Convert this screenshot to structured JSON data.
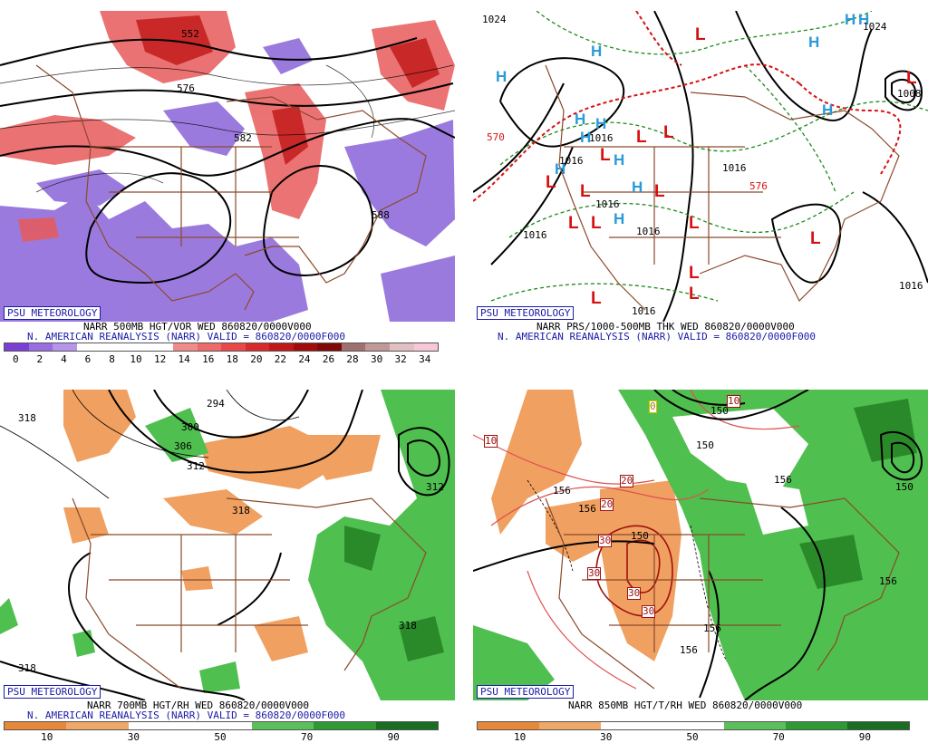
{
  "badge": "PSU METEOROLOGY",
  "panels": {
    "tl": {
      "title": "NARR 500MB HGT/VOR WED 860820/0000V000",
      "subtitle": "N. AMERICAN REANALYSIS (NARR) VALID = 860820/0000F000",
      "labels": [
        "576",
        "582",
        "588",
        "552"
      ],
      "scale_ticks": [
        "0",
        "2",
        "4",
        "6",
        "8",
        "10",
        "12",
        "14",
        "16",
        "18",
        "20",
        "22",
        "24",
        "26",
        "28",
        "30",
        "32",
        "34"
      ],
      "scale_colors": [
        "#7b3fd6",
        "#9a6ee0",
        "#b596ea",
        "#ffffff",
        "#ffffff",
        "#ffffff",
        "#ffffff",
        "#f08c8c",
        "#ee6a6a",
        "#e84848",
        "#d82a2a",
        "#c01818",
        "#a00c0c",
        "#800808",
        "#a07070",
        "#c09898",
        "#e0c0c0",
        "#f8c8d8"
      ]
    },
    "tr": {
      "title": "NARR PRS/1000-500MB THK WED 860820/0000V000",
      "subtitle": "N. AMERICAN REANALYSIS (NARR) VALID = 860820/0000F000",
      "labels": [
        "1024",
        "1016",
        "1016",
        "1016",
        "1016",
        "1016",
        "1016",
        "1016",
        "1016",
        "1008",
        "570",
        "576",
        "1024"
      ],
      "highs": 13,
      "lows": 14
    },
    "bl": {
      "title": "NARR 700MB HGT/RH WED 860820/0000V000",
      "subtitle": "N. AMERICAN REANALYSIS (NARR) VALID = 860820/0000F000",
      "labels": [
        "318",
        "294",
        "300",
        "306",
        "312",
        "318",
        "312",
        "318",
        "318"
      ],
      "scale_ticks": [
        "10",
        "30",
        "50",
        "70",
        "90"
      ],
      "scale_colors": [
        "#e8883a",
        "#f0a868",
        "#ffffff",
        "#ffffff",
        "#5bbf5b",
        "#2d9a35",
        "#1a6e22"
      ]
    },
    "br": {
      "title": "NARR 850MB HGT/T/RH WED 860820/0000V000",
      "labels": [
        "150",
        "150",
        "156",
        "156",
        "156",
        "156",
        "156",
        "156",
        "150",
        "150",
        "10",
        "10",
        "20",
        "20",
        "30",
        "30",
        "30",
        "30",
        "0"
      ],
      "scale_ticks": [
        "10",
        "30",
        "50",
        "70",
        "90"
      ],
      "scale_colors": [
        "#e8883a",
        "#f0a868",
        "#ffffff",
        "#ffffff",
        "#5bbf5b",
        "#2d9a35",
        "#1a6e22"
      ]
    }
  }
}
